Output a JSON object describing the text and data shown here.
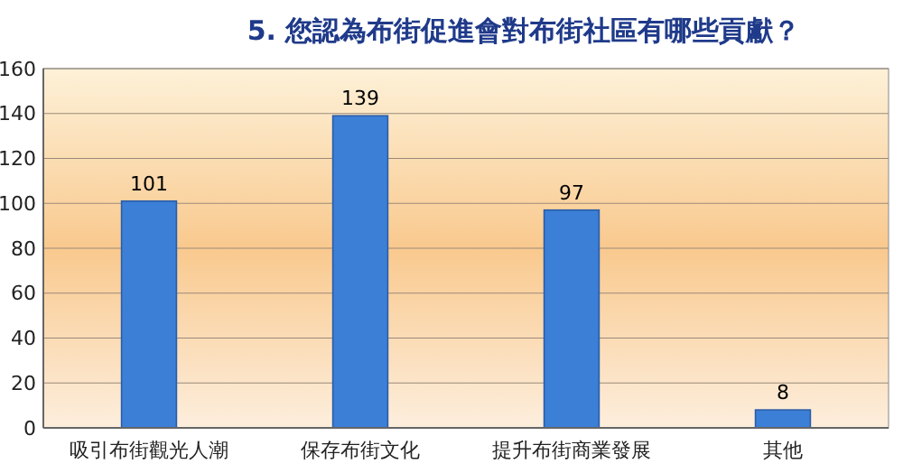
{
  "chart_data": {
    "type": "bar",
    "title": "5. 您認為布街促進會對布街社區有哪些貢獻？",
    "categories": [
      "吸引布街觀光人潮",
      "保存布街文化",
      "提升布街商業發展",
      "其他"
    ],
    "values": [
      101,
      139,
      97,
      8
    ],
    "color": "#3c7fd6",
    "ylim": [
      0,
      160
    ],
    "yticks": [
      0,
      20,
      40,
      60,
      80,
      100,
      120,
      140,
      160
    ],
    "grid": "y",
    "data_labels": true
  }
}
